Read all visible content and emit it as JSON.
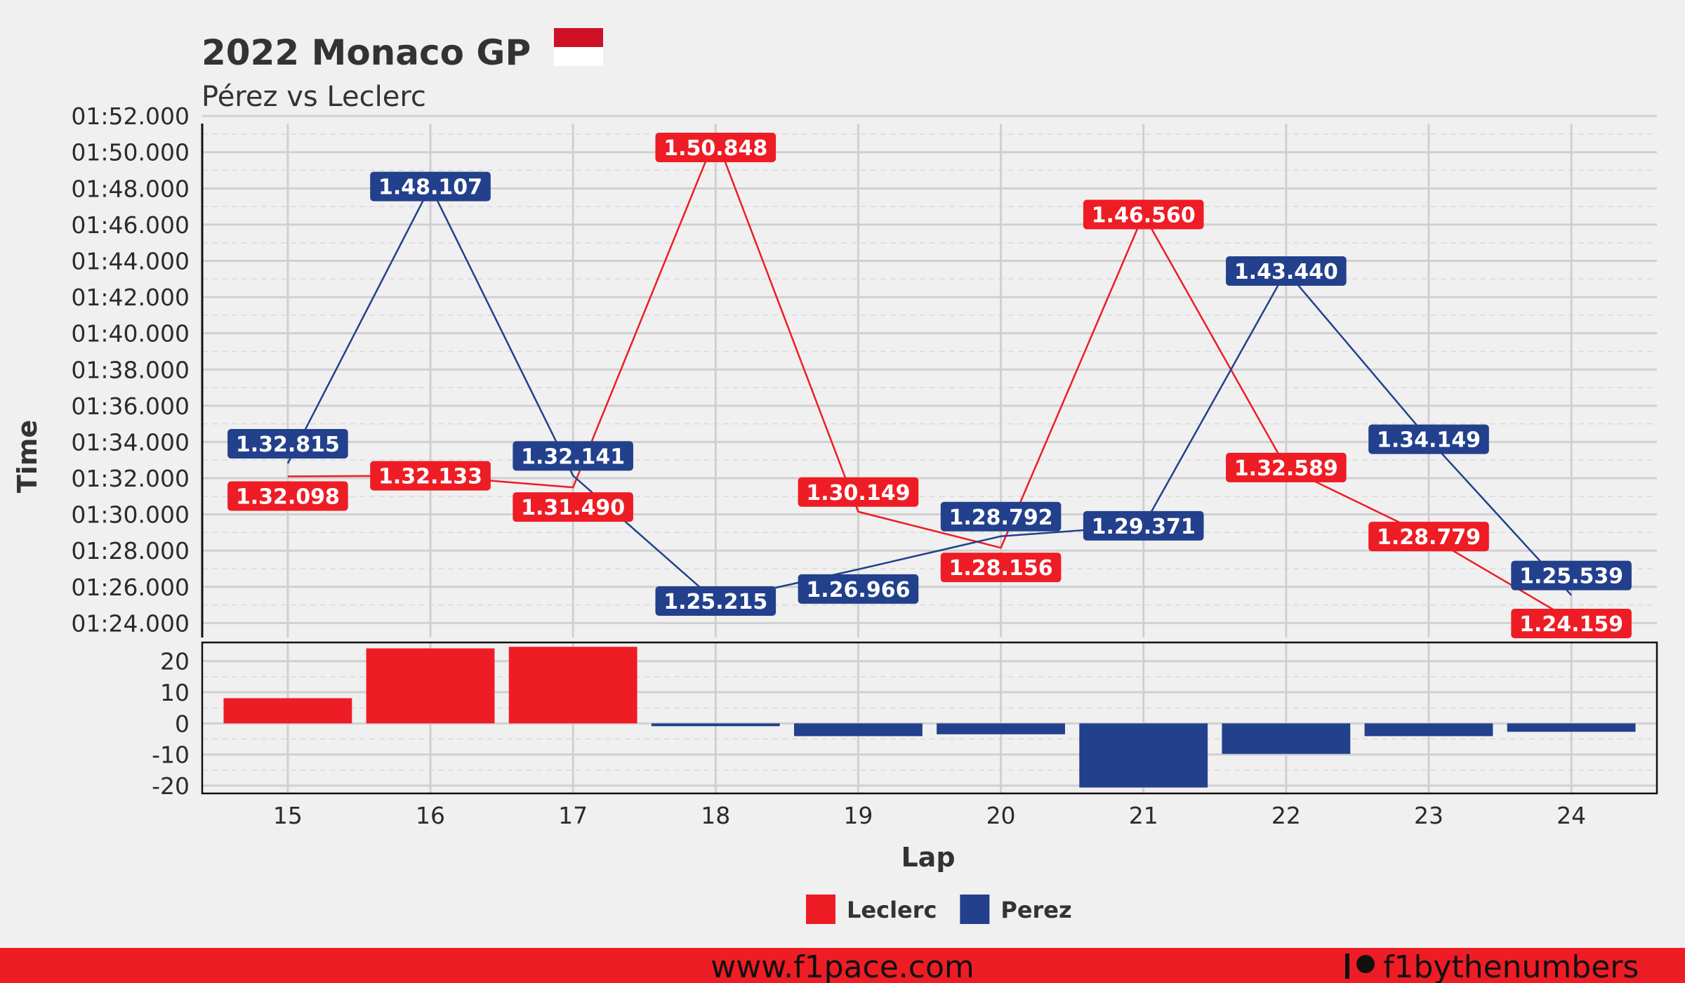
{
  "header": {
    "title": "2022 Monaco GP",
    "subtitle": "Pérez vs Leclerc"
  },
  "footer": {
    "website": "www.f1pace.com",
    "brand": "f1bythenumbers"
  },
  "colors": {
    "leclerc": "#ee1c25",
    "perez": "#22408c",
    "background": "#f0f0f0",
    "footer_band": "#ee1c25",
    "flag_top": "#ce1126",
    "flag_bottom": "#ffffff"
  },
  "chart_data": [
    {
      "type": "line",
      "ylabel": "Time",
      "y_tick_labels": [
        "01:24.000",
        "01:26.000",
        "01:28.000",
        "01:30.000",
        "01:32.000",
        "01:34.000",
        "01:36.000",
        "01:38.000",
        "01:40.000",
        "01:42.000",
        "01:44.000",
        "01:46.000",
        "01:48.000",
        "01:50.000",
        "01:52.000"
      ],
      "y_ticks": [
        84,
        86,
        88,
        90,
        92,
        94,
        96,
        98,
        100,
        102,
        104,
        106,
        108,
        110,
        112
      ],
      "ylim": [
        83.2,
        112.2
      ],
      "x": [
        15,
        16,
        17,
        18,
        19,
        20,
        21,
        22,
        23,
        24
      ],
      "xlim": [
        14.4,
        24.6
      ],
      "grid": true,
      "series": [
        {
          "name": "Leclerc",
          "values_seconds": [
            92.098,
            92.133,
            91.49,
            110.848,
            90.149,
            88.156,
            106.56,
            92.589,
            88.779,
            84.159
          ],
          "labels": [
            "1.32.098",
            "1.32.133",
            "1.31.490",
            "1.50.848",
            "1.30.149",
            "1.28.156",
            "1.46.560",
            "1.32.589",
            "1.28.779",
            "1.24.159"
          ]
        },
        {
          "name": "Perez",
          "values_seconds": [
            92.815,
            108.107,
            92.141,
            85.215,
            86.966,
            88.792,
            89.371,
            103.44,
            94.149,
            85.539
          ],
          "labels": [
            "1.32.815",
            "1.48.107",
            "1.32.141",
            "1.25.215",
            "1.26.966",
            "1.28.792",
            "1.29.371",
            "1.43.440",
            "1.34.149",
            "1.25.539"
          ]
        }
      ]
    },
    {
      "type": "bar",
      "xlabel": "Lap",
      "categories": [
        "15",
        "16",
        "17",
        "18",
        "19",
        "20",
        "21",
        "22",
        "23",
        "24"
      ],
      "values": [
        8.1,
        24.1,
        24.6,
        -0.9,
        -4.1,
        -3.5,
        -20.6,
        -9.8,
        -4.1,
        -2.7
      ],
      "bar_series": [
        "Leclerc",
        "Leclerc",
        "Leclerc",
        "Perez",
        "Perez",
        "Perez",
        "Perez",
        "Perez",
        "Perez",
        "Perez"
      ],
      "y_tick_labels": [
        "20",
        "10",
        "0",
        "-10",
        "-20"
      ],
      "y_ticks": [
        20,
        10,
        0,
        -10,
        -20
      ],
      "ylim": [
        -22.5,
        26
      ],
      "grid": true
    }
  ],
  "legend": {
    "position": "bottom-center",
    "items": [
      {
        "name": "Leclerc",
        "color": "#ee1c25"
      },
      {
        "name": "Perez",
        "color": "#22408c"
      }
    ]
  }
}
